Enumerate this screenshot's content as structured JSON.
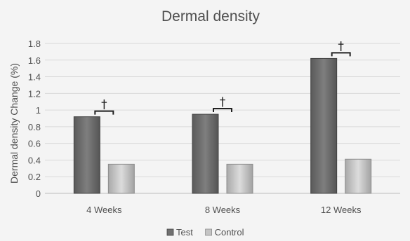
{
  "chart_data": {
    "type": "bar",
    "title": "Dermal density",
    "xlabel": "",
    "ylabel": "Dermal density Change (%)",
    "categories": [
      "4 Weeks",
      "8 Weeks",
      "12 Weeks"
    ],
    "series": [
      {
        "name": "Test",
        "values": [
          0.92,
          0.95,
          1.62
        ],
        "color": "#707070"
      },
      {
        "name": "Control",
        "values": [
          0.35,
          0.35,
          0.41
        ],
        "color": "#c4c4c4"
      }
    ],
    "ylim": [
      0,
      1.8
    ],
    "yticks": [
      "0",
      "0.2",
      "0.4",
      "0.6",
      "0.8",
      "1",
      "1.2",
      "1.4",
      "1.6",
      "1.8"
    ],
    "grid": true,
    "legend_position": "bottom",
    "annotations": [
      "†",
      "†",
      "†"
    ]
  }
}
